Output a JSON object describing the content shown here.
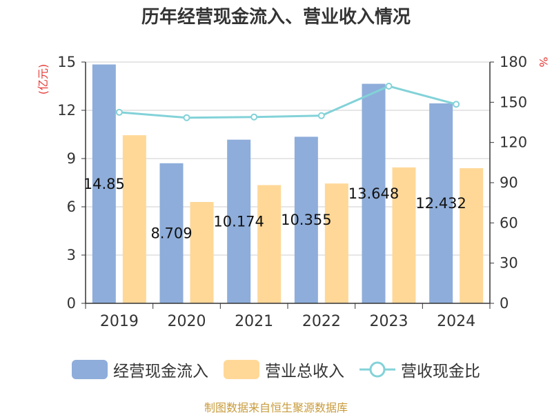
{
  "chart_data": {
    "type": "bar",
    "title": "历年经营现金流入、营业收入情况",
    "categories": [
      "2019",
      "2020",
      "2021",
      "2022",
      "2023",
      "2024"
    ],
    "series": [
      {
        "name": "经营现金流入",
        "kind": "bar",
        "axis": "left",
        "color": "#8EADDA",
        "values": [
          14.85,
          8.709,
          10.174,
          10.355,
          13.648,
          12.432
        ],
        "labels": [
          "14.85",
          "8.709",
          "10.174",
          "10.355",
          "13.648",
          "12.432"
        ]
      },
      {
        "name": "营业总收入",
        "kind": "bar",
        "axis": "left",
        "color": "#FFD898",
        "values": [
          10.45,
          6.3,
          7.35,
          7.45,
          8.45,
          8.4
        ]
      },
      {
        "name": "营收现金比",
        "kind": "line",
        "axis": "right",
        "color": "#82D2D8",
        "values": [
          142.5,
          138.5,
          139,
          140,
          162,
          148.5
        ]
      }
    ],
    "ylabel": "(亿元)",
    "y2label": "%",
    "ylim": [
      0,
      15
    ],
    "yticks": [
      0,
      3,
      6,
      9,
      12,
      15
    ],
    "y2lim": [
      0,
      180
    ],
    "y2ticks": [
      0,
      30,
      60,
      90,
      120,
      150,
      180
    ],
    "grid": true,
    "legend_position": "bottom"
  },
  "footer": {
    "source": "制图数据来自恒生聚源数据库",
    "color": "#C89B3C"
  },
  "colors": {
    "axis_label": "#E53935"
  }
}
